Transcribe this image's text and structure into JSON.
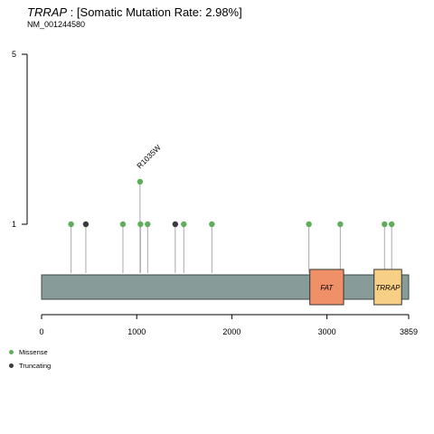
{
  "title": {
    "gene": "TRRAP",
    "separator": " : ",
    "rate_text": "[Somatic Mutation Rate: 2.98%]"
  },
  "subtitle": "NM_001244580",
  "colors": {
    "missense": "#5fae5c",
    "truncating": "#3b3b3b",
    "protein": "#879c98",
    "stem": "#aaaaaa",
    "fat_domain": "#ef9068",
    "trrap_domain": "#f7cf85"
  },
  "legend": [
    {
      "label": "Missense",
      "color": "#5fae5c"
    },
    {
      "label": "Truncating",
      "color": "#3b3b3b"
    }
  ],
  "chart_data": {
    "type": "lollipop",
    "protein_length": 3859,
    "x_ticks": [
      0,
      1000,
      2000,
      3000,
      3859
    ],
    "y_ticks": [
      1,
      5
    ],
    "ylim": [
      0,
      5
    ],
    "domains": [
      {
        "name": "FAT",
        "start": 2820,
        "end": 3175,
        "color": "#ef9068"
      },
      {
        "name": "TRRAP",
        "start": 3495,
        "end": 3785,
        "color": "#f7cf85"
      }
    ],
    "mutations": [
      {
        "pos": 310,
        "count": 1,
        "type": "Missense"
      },
      {
        "pos": 465,
        "count": 1,
        "type": "Truncating"
      },
      {
        "pos": 855,
        "count": 1,
        "type": "Missense"
      },
      {
        "pos": 1035,
        "count": 2,
        "type": "Missense",
        "label": "R1035W"
      },
      {
        "pos": 1040,
        "count": 1,
        "type": "Missense"
      },
      {
        "pos": 1115,
        "count": 1,
        "type": "Missense"
      },
      {
        "pos": 1405,
        "count": 1,
        "type": "Truncating"
      },
      {
        "pos": 1495,
        "count": 1,
        "type": "Missense"
      },
      {
        "pos": 1790,
        "count": 1,
        "type": "Missense"
      },
      {
        "pos": 2810,
        "count": 1,
        "type": "Missense"
      },
      {
        "pos": 3140,
        "count": 1,
        "type": "Missense"
      },
      {
        "pos": 3605,
        "count": 1,
        "type": "Missense"
      },
      {
        "pos": 3680,
        "count": 1,
        "type": "Missense"
      }
    ]
  }
}
